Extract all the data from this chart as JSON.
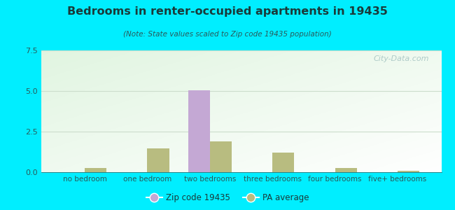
{
  "title": "Bedrooms in renter-occupied apartments in 19435",
  "subtitle": "(Note: State values scaled to Zip code 19435 population)",
  "categories": [
    "no bedroom",
    "one bedroom",
    "two bedrooms",
    "three bedrooms",
    "four bedrooms",
    "five+ bedrooms"
  ],
  "zip_values": [
    0,
    0,
    5.05,
    0,
    0,
    0
  ],
  "pa_values": [
    0.28,
    1.45,
    1.9,
    1.2,
    0.28,
    0.08
  ],
  "zip_color": "#c4a8d4",
  "pa_color": "#b8bc80",
  "background_outer": "#00eeff",
  "ylim": [
    0,
    7.5
  ],
  "yticks": [
    0,
    2.5,
    5,
    7.5
  ],
  "bar_width": 0.35,
  "legend_zip_label": "Zip code 19435",
  "legend_pa_label": "PA average",
  "watermark": "City-Data.com",
  "title_color": "#1a3a3a",
  "subtitle_color": "#2a5a5a",
  "tick_color": "#2a5a5a",
  "grid_color": "#ccddcc"
}
